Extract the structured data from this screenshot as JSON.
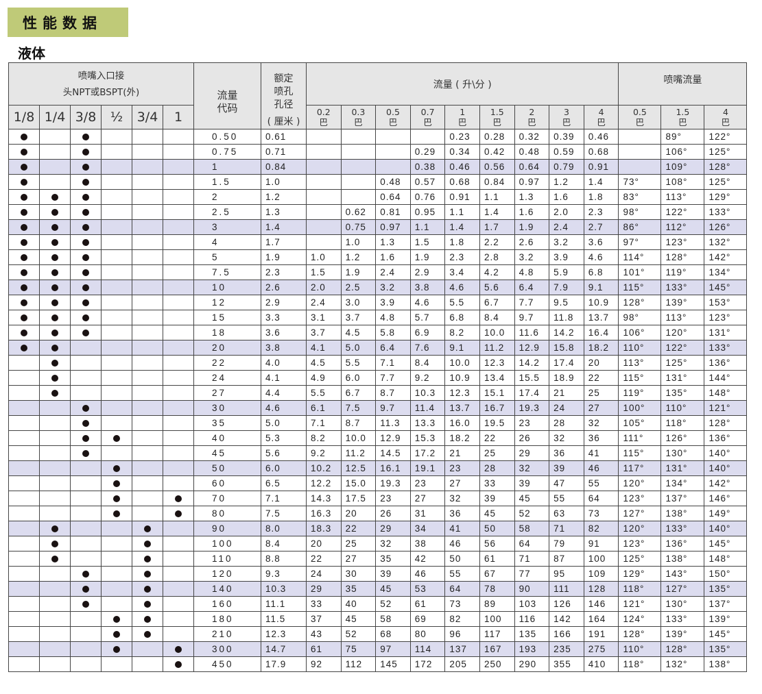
{
  "banner": "性能数据",
  "subtitle": "液体",
  "header": {
    "connection": "喷嘴入口接\n头NPT或BSPT(外)",
    "connection_line1": "喷嘴入口接",
    "connection_line2": "头NPT或BSPT(外)",
    "sizes": [
      "1/8",
      "1/4",
      "3/8",
      "½",
      "3/4",
      "1"
    ],
    "code": "流量代码",
    "code_line1": "流量",
    "code_line2": "代码",
    "orifice_line1": "额定",
    "orifice_line2": "喷孔",
    "orifice_line3": "孔径",
    "orifice_unit": "( 厘米 )",
    "flow": "流量 ( 升\\分 )",
    "flow_pressures": [
      "0.2",
      "0.3",
      "0.5",
      "0.7",
      "1",
      "1.5",
      "2",
      "3",
      "4"
    ],
    "angle": "喷嘴流量",
    "angle_pressures": [
      "0.5",
      "1.5",
      "4"
    ],
    "pressure_unit": "巴"
  },
  "colors": {
    "banner": "#bfca78",
    "highlight_row": "#dcdcef",
    "header_bg": "#e6e6e6"
  },
  "dot_icon": "filled-circle",
  "rows": [
    {
      "code": "0.50",
      "orifice": "0.61",
      "hl": false,
      "dots": [
        1,
        0,
        1,
        0,
        0,
        0
      ],
      "flows": [
        "",
        "",
        "",
        "",
        "0.23",
        "0.28",
        "0.32",
        "0.39",
        "0.46"
      ],
      "angles": [
        "",
        "89°",
        "122°"
      ]
    },
    {
      "code": "0.75",
      "orifice": "0.71",
      "hl": false,
      "dots": [
        1,
        0,
        1,
        0,
        0,
        0
      ],
      "flows": [
        "",
        "",
        "",
        "0.29",
        "0.34",
        "0.42",
        "0.48",
        "0.59",
        "0.68"
      ],
      "angles": [
        "",
        "106°",
        "125°"
      ]
    },
    {
      "code": "1",
      "orifice": "0.84",
      "hl": true,
      "dots": [
        1,
        0,
        1,
        0,
        0,
        0
      ],
      "flows": [
        "",
        "",
        "",
        "0.38",
        "0.46",
        "0.56",
        "0.64",
        "0.79",
        "0.91"
      ],
      "angles": [
        "",
        "109°",
        "128°"
      ]
    },
    {
      "code": "1.5",
      "orifice": "1.0",
      "hl": false,
      "dots": [
        1,
        0,
        1,
        0,
        0,
        0
      ],
      "flows": [
        "",
        "",
        "0.48",
        "0.57",
        "0.68",
        "0.84",
        "0.97",
        "1.2",
        "1.4"
      ],
      "angles": [
        "73°",
        "108°",
        "125°"
      ]
    },
    {
      "code": "2",
      "orifice": "1.2",
      "hl": false,
      "dots": [
        1,
        1,
        1,
        0,
        0,
        0
      ],
      "flows": [
        "",
        "",
        "0.64",
        "0.76",
        "0.91",
        "1.1",
        "1.3",
        "1.6",
        "1.8"
      ],
      "angles": [
        "83°",
        "113°",
        "129°"
      ]
    },
    {
      "code": "2.5",
      "orifice": "1.3",
      "hl": false,
      "dots": [
        1,
        1,
        1,
        0,
        0,
        0
      ],
      "flows": [
        "",
        "0.62",
        "0.81",
        "0.95",
        "1.1",
        "1.4",
        "1.6",
        "2.0",
        "2.3"
      ],
      "angles": [
        "98°",
        "122°",
        "133°"
      ]
    },
    {
      "code": "3",
      "orifice": "1.4",
      "hl": true,
      "dots": [
        1,
        1,
        1,
        0,
        0,
        0
      ],
      "flows": [
        "",
        "0.75",
        "0.97",
        "1.1",
        "1.4",
        "1.7",
        "1.9",
        "2.4",
        "2.7"
      ],
      "angles": [
        "86°",
        "112°",
        "126°"
      ]
    },
    {
      "code": "4",
      "orifice": "1.7",
      "hl": false,
      "dots": [
        1,
        1,
        1,
        0,
        0,
        0
      ],
      "flows": [
        "",
        "1.0",
        "1.3",
        "1.5",
        "1.8",
        "2.2",
        "2.6",
        "3.2",
        "3.6"
      ],
      "angles": [
        "97°",
        "123°",
        "132°"
      ]
    },
    {
      "code": "5",
      "orifice": "1.9",
      "hl": false,
      "dots": [
        1,
        1,
        1,
        0,
        0,
        0
      ],
      "flows": [
        "1.0",
        "1.2",
        "1.6",
        "1.9",
        "2.3",
        "2.8",
        "3.2",
        "3.9",
        "4.6"
      ],
      "angles": [
        "114°",
        "128°",
        "142°"
      ]
    },
    {
      "code": "7.5",
      "orifice": "2.3",
      "hl": false,
      "dots": [
        1,
        1,
        1,
        0,
        0,
        0
      ],
      "flows": [
        "1.5",
        "1.9",
        "2.4",
        "2.9",
        "3.4",
        "4.2",
        "4.8",
        "5.9",
        "6.8"
      ],
      "angles": [
        "101°",
        "119°",
        "134°"
      ]
    },
    {
      "code": "10",
      "orifice": "2.6",
      "hl": true,
      "dots": [
        1,
        1,
        1,
        0,
        0,
        0
      ],
      "flows": [
        "2.0",
        "2.5",
        "3.2",
        "3.8",
        "4.6",
        "5.6",
        "6.4",
        "7.9",
        "9.1"
      ],
      "angles": [
        "115°",
        "133°",
        "145°"
      ]
    },
    {
      "code": "12",
      "orifice": "2.9",
      "hl": false,
      "dots": [
        1,
        1,
        1,
        0,
        0,
        0
      ],
      "flows": [
        "2.4",
        "3.0",
        "3.9",
        "4.6",
        "5.5",
        "6.7",
        "7.7",
        "9.5",
        "10.9"
      ],
      "angles": [
        "128°",
        "139°",
        "153°"
      ]
    },
    {
      "code": "15",
      "orifice": "3.3",
      "hl": false,
      "dots": [
        1,
        1,
        1,
        0,
        0,
        0
      ],
      "flows": [
        "3.1",
        "3.7",
        "4.8",
        "5.7",
        "6.8",
        "8.4",
        "9.7",
        "11.8",
        "13.7"
      ],
      "angles": [
        "98°",
        "113°",
        "123°"
      ]
    },
    {
      "code": "18",
      "orifice": "3.6",
      "hl": false,
      "dots": [
        1,
        1,
        1,
        0,
        0,
        0
      ],
      "flows": [
        "3.7",
        "4.5",
        "5.8",
        "6.9",
        "8.2",
        "10.0",
        "11.6",
        "14.2",
        "16.4"
      ],
      "angles": [
        "106°",
        "120°",
        "131°"
      ]
    },
    {
      "code": "20",
      "orifice": "3.8",
      "hl": true,
      "dots": [
        1,
        1,
        0,
        0,
        0,
        0
      ],
      "flows": [
        "4.1",
        "5.0",
        "6.4",
        "7.6",
        "9.1",
        "11.2",
        "12.9",
        "15.8",
        "18.2"
      ],
      "angles": [
        "110°",
        "122°",
        "133°"
      ]
    },
    {
      "code": "22",
      "orifice": "4.0",
      "hl": false,
      "dots": [
        0,
        1,
        0,
        0,
        0,
        0
      ],
      "flows": [
        "4.5",
        "5.5",
        "7.1",
        "8.4",
        "10.0",
        "12.3",
        "14.2",
        "17.4",
        "20"
      ],
      "angles": [
        "113°",
        "125°",
        "136°"
      ]
    },
    {
      "code": "24",
      "orifice": "4.1",
      "hl": false,
      "dots": [
        0,
        1,
        0,
        0,
        0,
        0
      ],
      "flows": [
        "4.9",
        "6.0",
        "7.7",
        "9.2",
        "10.9",
        "13.4",
        "15.5",
        "18.9",
        "22"
      ],
      "angles": [
        "115°",
        "131°",
        "144°"
      ]
    },
    {
      "code": "27",
      "orifice": "4.4",
      "hl": false,
      "dots": [
        0,
        1,
        0,
        0,
        0,
        0
      ],
      "flows": [
        "5.5",
        "6.7",
        "8.7",
        "10.3",
        "12.3",
        "15.1",
        "17.4",
        "21",
        "25"
      ],
      "angles": [
        "119°",
        "135°",
        "148°"
      ]
    },
    {
      "code": "30",
      "orifice": "4.6",
      "hl": true,
      "dots": [
        0,
        0,
        1,
        0,
        0,
        0
      ],
      "flows": [
        "6.1",
        "7.5",
        "9.7",
        "11.4",
        "13.7",
        "16.7",
        "19.3",
        "24",
        "27"
      ],
      "angles": [
        "100°",
        "110°",
        "121°"
      ]
    },
    {
      "code": "35",
      "orifice": "5.0",
      "hl": false,
      "dots": [
        0,
        0,
        1,
        0,
        0,
        0
      ],
      "flows": [
        "7.1",
        "8.7",
        "11.3",
        "13.3",
        "16.0",
        "19.5",
        "23",
        "28",
        "32"
      ],
      "angles": [
        "105°",
        "118°",
        "128°"
      ]
    },
    {
      "code": "40",
      "orifice": "5.3",
      "hl": false,
      "dots": [
        0,
        0,
        1,
        1,
        0,
        0
      ],
      "flows": [
        "8.2",
        "10.0",
        "12.9",
        "15.3",
        "18.2",
        "22",
        "26",
        "32",
        "36"
      ],
      "angles": [
        "111°",
        "126°",
        "136°"
      ]
    },
    {
      "code": "45",
      "orifice": "5.6",
      "hl": false,
      "dots": [
        0,
        0,
        1,
        0,
        0,
        0
      ],
      "flows": [
        "9.2",
        "11.2",
        "14.5",
        "17.2",
        "21",
        "25",
        "29",
        "36",
        "41"
      ],
      "angles": [
        "115°",
        "130°",
        "140°"
      ]
    },
    {
      "code": "50",
      "orifice": "6.0",
      "hl": true,
      "dots": [
        0,
        0,
        0,
        1,
        0,
        0
      ],
      "flows": [
        "10.2",
        "12.5",
        "16.1",
        "19.1",
        "23",
        "28",
        "32",
        "39",
        "46"
      ],
      "angles": [
        "117°",
        "131°",
        "140°"
      ]
    },
    {
      "code": "60",
      "orifice": "6.5",
      "hl": false,
      "dots": [
        0,
        0,
        0,
        1,
        0,
        0
      ],
      "flows": [
        "12.2",
        "15.0",
        "19.3",
        "23",
        "27",
        "33",
        "39",
        "47",
        "55"
      ],
      "angles": [
        "120°",
        "134°",
        "142°"
      ]
    },
    {
      "code": "70",
      "orifice": "7.1",
      "hl": false,
      "dots": [
        0,
        0,
        0,
        1,
        0,
        1
      ],
      "flows": [
        "14.3",
        "17.5",
        "23",
        "27",
        "32",
        "39",
        "45",
        "55",
        "64"
      ],
      "angles": [
        "123°",
        "137°",
        "146°"
      ]
    },
    {
      "code": "80",
      "orifice": "7.5",
      "hl": false,
      "dots": [
        0,
        0,
        0,
        1,
        0,
        1
      ],
      "flows": [
        "16.3",
        "20",
        "26",
        "31",
        "36",
        "45",
        "52",
        "63",
        "73"
      ],
      "angles": [
        "127°",
        "138°",
        "149°"
      ]
    },
    {
      "code": "90",
      "orifice": "8.0",
      "hl": true,
      "dots": [
        0,
        1,
        0,
        0,
        1,
        0
      ],
      "flows": [
        "18.3",
        "22",
        "29",
        "34",
        "41",
        "50",
        "58",
        "71",
        "82"
      ],
      "angles": [
        "120°",
        "133°",
        "140°"
      ]
    },
    {
      "code": "100",
      "orifice": "8.4",
      "hl": false,
      "dots": [
        0,
        1,
        0,
        0,
        1,
        0
      ],
      "flows": [
        "20",
        "25",
        "32",
        "38",
        "46",
        "56",
        "64",
        "79",
        "91"
      ],
      "angles": [
        "123°",
        "136°",
        "145°"
      ]
    },
    {
      "code": "110",
      "orifice": "8.8",
      "hl": false,
      "dots": [
        0,
        1,
        0,
        0,
        1,
        0
      ],
      "flows": [
        "22",
        "27",
        "35",
        "42",
        "50",
        "61",
        "71",
        "87",
        "100"
      ],
      "angles": [
        "125°",
        "138°",
        "148°"
      ]
    },
    {
      "code": "120",
      "orifice": "9.3",
      "hl": false,
      "dots": [
        0,
        0,
        1,
        0,
        1,
        0
      ],
      "flows": [
        "24",
        "30",
        "39",
        "46",
        "55",
        "67",
        "77",
        "95",
        "109"
      ],
      "angles": [
        "129°",
        "143°",
        "150°"
      ]
    },
    {
      "code": "140",
      "orifice": "10.3",
      "hl": true,
      "dots": [
        0,
        0,
        1,
        0,
        1,
        0
      ],
      "flows": [
        "29",
        "35",
        "45",
        "53",
        "64",
        "78",
        "90",
        "111",
        "128"
      ],
      "angles": [
        "118°",
        "127°",
        "135°"
      ]
    },
    {
      "code": "160",
      "orifice": "11.1",
      "hl": false,
      "dots": [
        0,
        0,
        1,
        0,
        1,
        0
      ],
      "flows": [
        "33",
        "40",
        "52",
        "61",
        "73",
        "89",
        "103",
        "126",
        "146"
      ],
      "angles": [
        "121°",
        "130°",
        "137°"
      ]
    },
    {
      "code": "180",
      "orifice": "11.5",
      "hl": false,
      "dots": [
        0,
        0,
        0,
        1,
        1,
        0
      ],
      "flows": [
        "37",
        "45",
        "58",
        "69",
        "82",
        "100",
        "116",
        "142",
        "164"
      ],
      "angles": [
        "124°",
        "133°",
        "139°"
      ]
    },
    {
      "code": "210",
      "orifice": "12.3",
      "hl": false,
      "dots": [
        0,
        0,
        0,
        1,
        1,
        0
      ],
      "flows": [
        "43",
        "52",
        "68",
        "80",
        "96",
        "117",
        "135",
        "166",
        "191"
      ],
      "angles": [
        "128°",
        "139°",
        "145°"
      ]
    },
    {
      "code": "300",
      "orifice": "14.7",
      "hl": true,
      "dots": [
        0,
        0,
        0,
        1,
        0,
        1
      ],
      "flows": [
        "61",
        "75",
        "97",
        "114",
        "137",
        "167",
        "193",
        "235",
        "275"
      ],
      "angles": [
        "110°",
        "128°",
        "135°"
      ]
    },
    {
      "code": "450",
      "orifice": "17.9",
      "hl": false,
      "dots": [
        0,
        0,
        0,
        0,
        0,
        1
      ],
      "flows": [
        "92",
        "112",
        "145",
        "172",
        "205",
        "250",
        "290",
        "355",
        "410"
      ],
      "angles": [
        "118°",
        "132°",
        "138°"
      ]
    }
  ]
}
